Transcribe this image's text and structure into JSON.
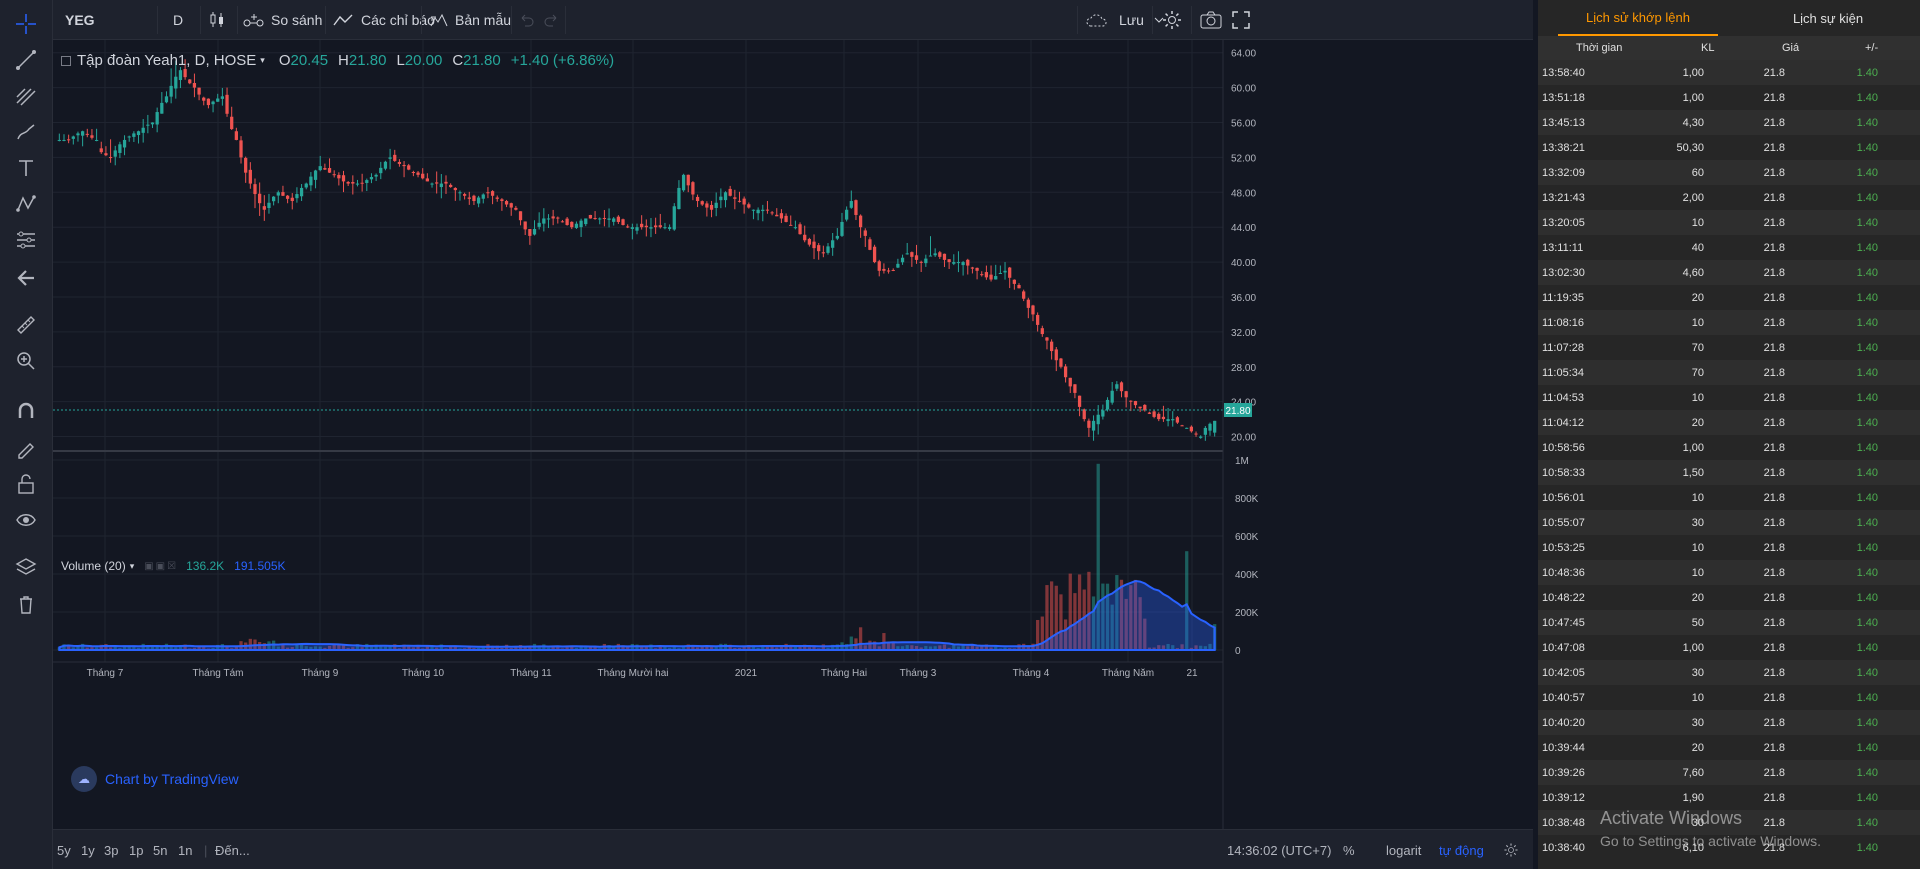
{
  "symbol": "YEG",
  "interval": "D",
  "toolbar": {
    "compare_label": "So sánh",
    "indicators_label": "Các chỉ báo",
    "templates_label": "Bản mẫu",
    "save_label": "Lưu"
  },
  "legend": {
    "title": "Tập đoàn Yeah1, D, HOSE",
    "open_label": "O",
    "open": "20.45",
    "high_label": "H",
    "high": "21.80",
    "low_label": "L",
    "low": "20.00",
    "close_label": "C",
    "close": "21.80",
    "change": "+1.40 (+6.86%)"
  },
  "volume_legend": {
    "label": "Volume (20)",
    "value": "136.2K",
    "ma_value": "191.505K"
  },
  "watermark": "Chart by TradingView",
  "price_axis": [
    "64.00",
    "60.00",
    "56.00",
    "52.00",
    "48.00",
    "44.00",
    "40.00",
    "36.00",
    "32.00",
    "28.00",
    "24.00",
    "20.00"
  ],
  "last_price": "21.80",
  "volume_axis": [
    "1M",
    "800K",
    "600K",
    "400K",
    "200K",
    "0"
  ],
  "time_axis": [
    "Tháng 7",
    "Tháng Tám",
    "Tháng 9",
    "Tháng 10",
    "Tháng 11",
    "Tháng Mười hai",
    "2021",
    "Tháng Hai",
    "Tháng 3",
    "Tháng 4",
    "Tháng Năm",
    "21"
  ],
  "bottom": {
    "ranges": [
      "5y",
      "1y",
      "3p",
      "1p",
      "5n",
      "1n"
    ],
    "goto": "Đến...",
    "clock": "14:36:02 (UTC+7)",
    "percent": "%",
    "log": "logarit",
    "auto": "tự động"
  },
  "colors": {
    "up": "#26a69a",
    "down": "#ef5350",
    "accent": "#ff9800",
    "positive": "#4caf50"
  },
  "chart_data": {
    "type": "candlestick",
    "series": [
      {
        "name": "Price",
        "ohlc_approx": [
          [
            54,
            55,
            53,
            54
          ],
          [
            54,
            56,
            53,
            55
          ],
          [
            55,
            56,
            54,
            54
          ],
          [
            53,
            55,
            51,
            52
          ],
          [
            52,
            55,
            51,
            54
          ],
          [
            54,
            55,
            53,
            55
          ],
          [
            55,
            57,
            54,
            56
          ],
          [
            56,
            60,
            55,
            59
          ],
          [
            59,
            64,
            58,
            62
          ],
          [
            62,
            63,
            59,
            60
          ],
          [
            60,
            60,
            56,
            58
          ],
          [
            58,
            60,
            56,
            59
          ],
          [
            59,
            60,
            53,
            54
          ],
          [
            54,
            55,
            48,
            49
          ],
          [
            49,
            50,
            44,
            46
          ],
          [
            46,
            49,
            45,
            48
          ],
          [
            48,
            50,
            46,
            47
          ],
          [
            47,
            50,
            46,
            49
          ],
          [
            49,
            52,
            48,
            51
          ],
          [
            51,
            52,
            49,
            50
          ],
          [
            50,
            51,
            48,
            49
          ],
          [
            49,
            50,
            48,
            49
          ],
          [
            49,
            51,
            48,
            50
          ],
          [
            50,
            53,
            49,
            52
          ],
          [
            52,
            53,
            50,
            51
          ],
          [
            51,
            51,
            49,
            50
          ],
          [
            50,
            51,
            48,
            49
          ],
          [
            49,
            50,
            48,
            49
          ],
          [
            49,
            49,
            47,
            48
          ],
          [
            48,
            49,
            46,
            47
          ],
          [
            47,
            49,
            46,
            48
          ],
          [
            48,
            48,
            46,
            47
          ],
          [
            47,
            47,
            45,
            46
          ],
          [
            46,
            46,
            42,
            43
          ],
          [
            43,
            46,
            42,
            45
          ],
          [
            45,
            46,
            44,
            45
          ],
          [
            45,
            45,
            44,
            44
          ],
          [
            44,
            45,
            43,
            45
          ],
          [
            45,
            46,
            44,
            45
          ],
          [
            45,
            46,
            44,
            45
          ],
          [
            45,
            45,
            44,
            44
          ],
          [
            44,
            45,
            43,
            44
          ],
          [
            44,
            45,
            43,
            44
          ],
          [
            44,
            45,
            43,
            44
          ],
          [
            44,
            51,
            44,
            50
          ],
          [
            50,
            50,
            46,
            47
          ],
          [
            47,
            48,
            45,
            46
          ],
          [
            46,
            49,
            45,
            48
          ],
          [
            48,
            49,
            46,
            47
          ],
          [
            47,
            47,
            45,
            46
          ],
          [
            46,
            47,
            45,
            46
          ],
          [
            46,
            47,
            44,
            45
          ],
          [
            45,
            46,
            44,
            44
          ],
          [
            44,
            45,
            42,
            42
          ],
          [
            42,
            43,
            40,
            41
          ],
          [
            41,
            44,
            40,
            43
          ],
          [
            43,
            48,
            43,
            47
          ],
          [
            47,
            47,
            42,
            43
          ],
          [
            43,
            43,
            38,
            39
          ],
          [
            39,
            40,
            38,
            39
          ],
          [
            39,
            42,
            39,
            41
          ],
          [
            41,
            42,
            39,
            40
          ],
          [
            40,
            43,
            39,
            41
          ],
          [
            41,
            41,
            39,
            40
          ],
          [
            40,
            41,
            39,
            40
          ],
          [
            40,
            40,
            38,
            39
          ],
          [
            39,
            40,
            38,
            38
          ],
          [
            38,
            40,
            37,
            39
          ],
          [
            39,
            39,
            36,
            37
          ],
          [
            37,
            37,
            33,
            34
          ],
          [
            34,
            34,
            30,
            31
          ],
          [
            31,
            31,
            27,
            28
          ],
          [
            28,
            28,
            24,
            25
          ],
          [
            25,
            25,
            20,
            21
          ],
          [
            21,
            24,
            20,
            23
          ],
          [
            23,
            27,
            23,
            26
          ],
          [
            26,
            26,
            23,
            24
          ],
          [
            24,
            24,
            22,
            23
          ],
          [
            23,
            23,
            22,
            22
          ],
          [
            22,
            23,
            21,
            22
          ],
          [
            22,
            22,
            21,
            21
          ],
          [
            21,
            21,
            20,
            20
          ],
          [
            20.45,
            21.8,
            20,
            21.8
          ]
        ]
      },
      {
        "name": "Volume",
        "last": "136.2K",
        "ma20": "191.505K"
      }
    ],
    "y_range": [
      18,
      65
    ],
    "volume_range": [
      0,
      1000000
    ]
  },
  "tabs": [
    "Lịch sử khớp lệnh",
    "Lịch sự kiện"
  ],
  "table": {
    "headers": [
      "Thời gian",
      "KL",
      "Giá",
      "+/-"
    ],
    "rows": [
      [
        "13:58:40",
        "1,00",
        "21.8",
        "1.40"
      ],
      [
        "13:51:18",
        "1,00",
        "21.8",
        "1.40"
      ],
      [
        "13:45:13",
        "4,30",
        "21.8",
        "1.40"
      ],
      [
        "13:38:21",
        "50,30",
        "21.8",
        "1.40"
      ],
      [
        "13:32:09",
        "60",
        "21.8",
        "1.40"
      ],
      [
        "13:21:43",
        "2,00",
        "21.8",
        "1.40"
      ],
      [
        "13:20:05",
        "10",
        "21.8",
        "1.40"
      ],
      [
        "13:11:11",
        "40",
        "21.8",
        "1.40"
      ],
      [
        "13:02:30",
        "4,60",
        "21.8",
        "1.40"
      ],
      [
        "11:19:35",
        "20",
        "21.8",
        "1.40"
      ],
      [
        "11:08:16",
        "10",
        "21.8",
        "1.40"
      ],
      [
        "11:07:28",
        "70",
        "21.8",
        "1.40"
      ],
      [
        "11:05:34",
        "70",
        "21.8",
        "1.40"
      ],
      [
        "11:04:53",
        "10",
        "21.8",
        "1.40"
      ],
      [
        "11:04:12",
        "20",
        "21.8",
        "1.40"
      ],
      [
        "10:58:56",
        "1,00",
        "21.8",
        "1.40"
      ],
      [
        "10:58:33",
        "1,50",
        "21.8",
        "1.40"
      ],
      [
        "10:56:01",
        "10",
        "21.8",
        "1.40"
      ],
      [
        "10:55:07",
        "30",
        "21.8",
        "1.40"
      ],
      [
        "10:53:25",
        "10",
        "21.8",
        "1.40"
      ],
      [
        "10:48:36",
        "10",
        "21.8",
        "1.40"
      ],
      [
        "10:48:22",
        "20",
        "21.8",
        "1.40"
      ],
      [
        "10:47:45",
        "50",
        "21.8",
        "1.40"
      ],
      [
        "10:47:08",
        "1,00",
        "21.8",
        "1.40"
      ],
      [
        "10:42:05",
        "30",
        "21.8",
        "1.40"
      ],
      [
        "10:40:57",
        "10",
        "21.8",
        "1.40"
      ],
      [
        "10:40:20",
        "30",
        "21.8",
        "1.40"
      ],
      [
        "10:39:44",
        "20",
        "21.8",
        "1.40"
      ],
      [
        "10:39:26",
        "7,60",
        "21.8",
        "1.40"
      ],
      [
        "10:39:12",
        "1,90",
        "21.8",
        "1.40"
      ],
      [
        "10:38:48",
        "30",
        "21.8",
        "1.40"
      ],
      [
        "10:38:40",
        "6,10",
        "21.8",
        "1.40"
      ]
    ]
  },
  "os_overlay": {
    "line1": "Activate Windows",
    "line2": "Go to Settings to activate Windows."
  }
}
